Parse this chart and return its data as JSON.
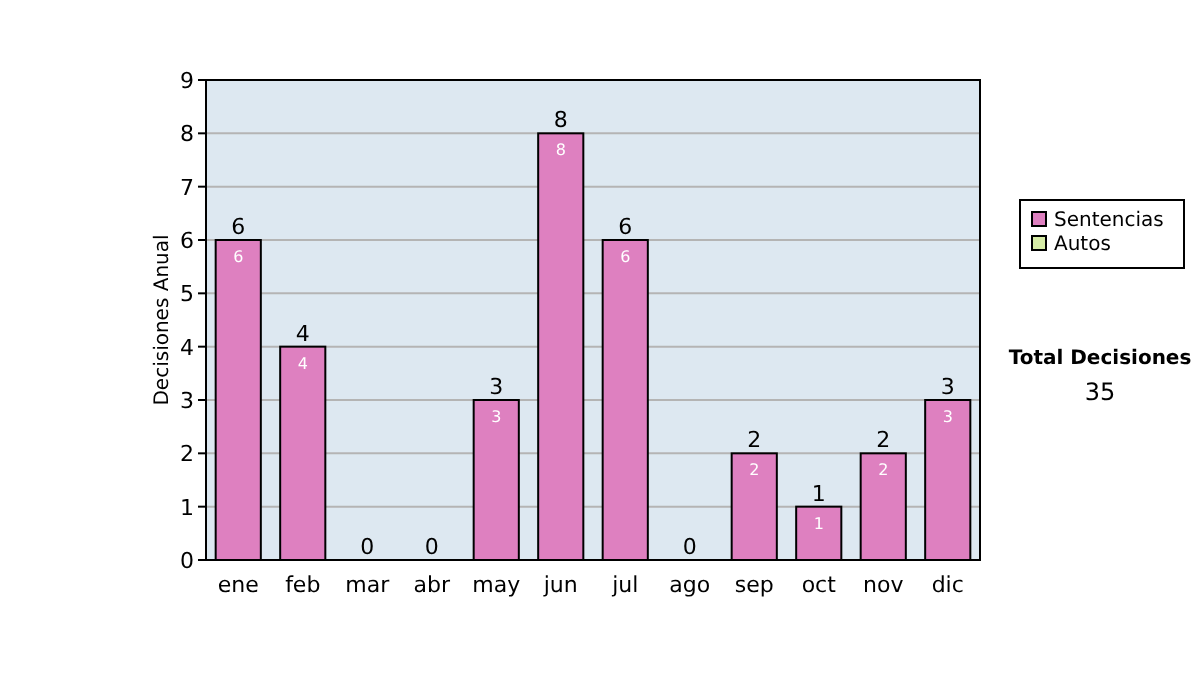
{
  "chart_data": {
    "type": "bar",
    "stacked": true,
    "ylabel": "Decisiones Anual",
    "categories": [
      "ene",
      "feb",
      "mar",
      "abr",
      "may",
      "jun",
      "jul",
      "ago",
      "sep",
      "oct",
      "nov",
      "dic"
    ],
    "series": [
      {
        "name": "Sentencias",
        "color": "#de80c0",
        "values": [
          6,
          4,
          0,
          0,
          3,
          8,
          6,
          0,
          2,
          1,
          2,
          3
        ],
        "value_labels": [
          "6",
          "4",
          null,
          null,
          "3",
          "8",
          "6",
          null,
          "2",
          "1",
          "2",
          "3"
        ]
      },
      {
        "name": "Autos",
        "color": "#d6eca6",
        "values": [
          0,
          0,
          0,
          0,
          0,
          0,
          0,
          0,
          0,
          0,
          0,
          0
        ],
        "value_labels": [
          null,
          null,
          null,
          null,
          null,
          null,
          null,
          null,
          null,
          null,
          null,
          null
        ]
      }
    ],
    "totals": [
      "6",
      "4",
      "0",
      "0",
      "3",
      "8",
      "6",
      "0",
      "2",
      "1",
      "2",
      "3"
    ],
    "ylim": [
      0,
      9
    ],
    "yticks": [
      0,
      1,
      2,
      3,
      4,
      5,
      6,
      7,
      8,
      9
    ],
    "grid": "y",
    "legend": "right",
    "annotations": [
      "Total Decisiones",
      "35"
    ]
  }
}
